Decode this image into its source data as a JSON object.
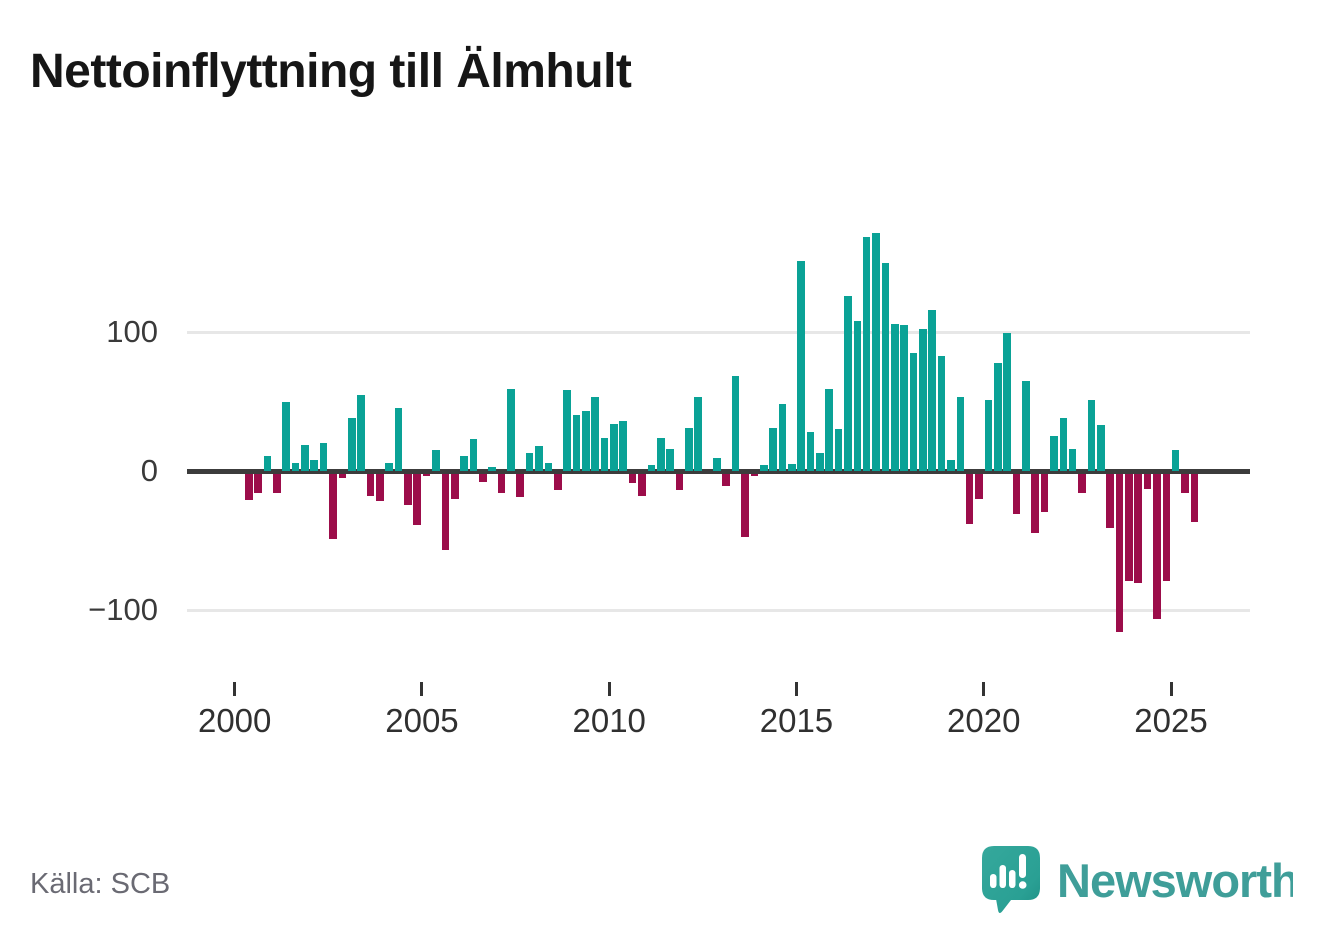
{
  "title": "Nettoinflyttning till Älmhult",
  "source": "Källa: SCB",
  "branding": {
    "logo_text": "Newsworthy",
    "logo_icon": "speech-bubble-bar-chart"
  },
  "chart_data": {
    "type": "bar",
    "title": "Nettoinflyttning till Älmhult",
    "xlabel": "",
    "ylabel": "",
    "legend": "none",
    "grid": "horizontal gridlines at 100 and -100, emphasized zero line",
    "ylim": [
      -125,
      180
    ],
    "y_ticks": [
      100,
      0,
      -100
    ],
    "y_tick_labels": [
      "100",
      "0",
      "−100"
    ],
    "x_tick_years": [
      2000,
      2005,
      2010,
      2015,
      2020,
      2025
    ],
    "x_tick_labels": [
      "2000",
      "2005",
      "2010",
      "2015",
      "2020",
      "2025"
    ],
    "colors": {
      "positive": "#0aa296",
      "negative": "#9c0d4a",
      "zero_line": "#3c3c3c",
      "gridline": "#e7e7e7",
      "tick": "#333333"
    },
    "x": [
      "2000Q1",
      "2000Q2",
      "2000Q3",
      "2000Q4",
      "2001Q1",
      "2001Q2",
      "2001Q3",
      "2001Q4",
      "2002Q1",
      "2002Q2",
      "2002Q3",
      "2002Q4",
      "2003Q1",
      "2003Q2",
      "2003Q3",
      "2003Q4",
      "2004Q1",
      "2004Q2",
      "2004Q3",
      "2004Q4",
      "2005Q1",
      "2005Q2",
      "2005Q3",
      "2005Q4",
      "2006Q1",
      "2006Q2",
      "2006Q3",
      "2006Q4",
      "2007Q1",
      "2007Q2",
      "2007Q3",
      "2007Q4",
      "2008Q1",
      "2008Q2",
      "2008Q3",
      "2008Q4",
      "2009Q1",
      "2009Q2",
      "2009Q3",
      "2009Q4",
      "2010Q1",
      "2010Q2",
      "2010Q3",
      "2010Q4",
      "2011Q1",
      "2011Q2",
      "2011Q3",
      "2011Q4",
      "2012Q1",
      "2012Q2",
      "2012Q3",
      "2012Q4",
      "2013Q1",
      "2013Q2",
      "2013Q3",
      "2013Q4",
      "2014Q1",
      "2014Q2",
      "2014Q3",
      "2014Q4",
      "2015Q1",
      "2015Q2",
      "2015Q3",
      "2015Q4",
      "2016Q1",
      "2016Q2",
      "2016Q3",
      "2016Q4",
      "2017Q1",
      "2017Q2",
      "2017Q3",
      "2017Q4",
      "2018Q1",
      "2018Q2",
      "2018Q3",
      "2018Q4",
      "2019Q1",
      "2019Q2",
      "2019Q3",
      "2019Q4",
      "2020Q1",
      "2020Q2",
      "2020Q3",
      "2020Q4",
      "2021Q1",
      "2021Q2",
      "2021Q3",
      "2021Q4",
      "2022Q1",
      "2022Q2",
      "2022Q3",
      "2022Q4",
      "2023Q1",
      "2023Q2",
      "2023Q3",
      "2023Q4",
      "2024Q1",
      "2024Q2",
      "2024Q3",
      "2024Q4",
      "2025Q1",
      "2025Q2",
      "2025Q3"
    ],
    "values": [
      0,
      -19,
      -14,
      11,
      -14,
      50,
      6,
      19,
      8,
      20,
      -47,
      -3,
      38,
      55,
      -16,
      -20,
      6,
      45,
      -23,
      -37,
      -2,
      15,
      -55,
      -18,
      11,
      23,
      -6,
      3,
      -14,
      59,
      -17,
      13,
      18,
      6,
      -12,
      58,
      40,
      43,
      53,
      24,
      34,
      36,
      -7,
      -16,
      4,
      24,
      16,
      -12,
      31,
      53,
      0,
      9,
      -9,
      68,
      -46,
      -2,
      4,
      31,
      48,
      5,
      151,
      28,
      13,
      59,
      30,
      126,
      108,
      168,
      171,
      150,
      106,
      105,
      85,
      102,
      116,
      83,
      8,
      53,
      -36,
      -18,
      51,
      78,
      99,
      -29,
      65,
      -43,
      -28,
      25,
      38,
      16,
      -14,
      51,
      33,
      -39,
      -114,
      -77,
      -79,
      -11,
      -105,
      -77,
      15,
      -14,
      -35
    ]
  }
}
